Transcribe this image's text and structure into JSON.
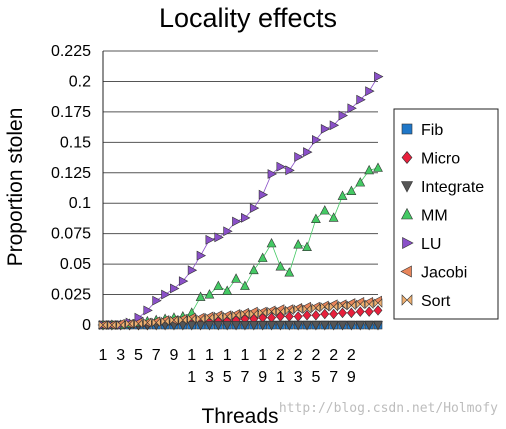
{
  "chart_data": {
    "type": "line",
    "title": "Locality effects",
    "xlabel": "Threads",
    "ylabel": "Proportion stolen",
    "ylim": [
      0,
      0.225
    ],
    "yticks": [
      "0",
      "0.025",
      "0.05",
      "0.075",
      "0.1",
      "0.125",
      "0.15",
      "0.175",
      "0.2",
      "0.225"
    ],
    "x": [
      1,
      2,
      3,
      4,
      5,
      6,
      7,
      8,
      9,
      10,
      11,
      12,
      13,
      14,
      15,
      16,
      17,
      18,
      19,
      20,
      21,
      22,
      23,
      24,
      25,
      26,
      27,
      28,
      29,
      30,
      31,
      32
    ],
    "xtick_labels": [
      {
        "x": 1,
        "lines": [
          "1"
        ]
      },
      {
        "x": 3,
        "lines": [
          "3"
        ]
      },
      {
        "x": 5,
        "lines": [
          "5"
        ]
      },
      {
        "x": 7,
        "lines": [
          "7"
        ]
      },
      {
        "x": 9,
        "lines": [
          "9"
        ]
      },
      {
        "x": 11,
        "lines": [
          "1",
          "1"
        ]
      },
      {
        "x": 13,
        "lines": [
          "1",
          "3"
        ]
      },
      {
        "x": 15,
        "lines": [
          "1",
          "5"
        ]
      },
      {
        "x": 17,
        "lines": [
          "1",
          "7"
        ]
      },
      {
        "x": 19,
        "lines": [
          "1",
          "9"
        ]
      },
      {
        "x": 21,
        "lines": [
          "2",
          "1"
        ]
      },
      {
        "x": 23,
        "lines": [
          "2",
          "3"
        ]
      },
      {
        "x": 25,
        "lines": [
          "2",
          "5"
        ]
      },
      {
        "x": 27,
        "lines": [
          "2",
          "7"
        ]
      },
      {
        "x": 29,
        "lines": [
          "2",
          "9"
        ]
      }
    ],
    "grid": true,
    "legend_position": "right",
    "series": [
      {
        "name": "Fib",
        "marker": "square",
        "color": "#1f77c8",
        "values": [
          0,
          0,
          0,
          0,
          0,
          0,
          0,
          0,
          0,
          0,
          0,
          0,
          0,
          0,
          0,
          0,
          0,
          0,
          0,
          0,
          0,
          0,
          0,
          0,
          0,
          0,
          0,
          0,
          0,
          0,
          0,
          0
        ]
      },
      {
        "name": "Micro",
        "marker": "diamond",
        "color": "#e8203c",
        "values": [
          0,
          0,
          0,
          0,
          0,
          0,
          0.001,
          0.001,
          0.001,
          0.002,
          0.002,
          0.003,
          0.003,
          0.003,
          0.004,
          0.004,
          0.005,
          0.005,
          0.006,
          0.006,
          0.007,
          0.007,
          0.007,
          0.008,
          0.008,
          0.009,
          0.009,
          0.01,
          0.01,
          0.011,
          0.011,
          0.012
        ]
      },
      {
        "name": "Integrate",
        "marker": "triangle-down",
        "color": "#555555",
        "values": [
          0,
          0,
          0,
          0,
          0,
          0,
          0,
          0,
          0,
          0,
          0,
          0,
          0,
          0,
          0,
          0,
          0,
          0,
          0,
          0,
          0,
          0,
          0,
          0,
          0,
          0,
          0,
          0,
          0,
          0,
          0,
          0
        ]
      },
      {
        "name": "MM",
        "marker": "triangle-up",
        "color": "#44c964",
        "values": [
          0,
          0,
          0,
          0.001,
          0.002,
          0.003,
          0.004,
          0.005,
          0.006,
          0.007,
          0.01,
          0.023,
          0.025,
          0.032,
          0.028,
          0.038,
          0.032,
          0.045,
          0.055,
          0.067,
          0.048,
          0.043,
          0.066,
          0.064,
          0.087,
          0.094,
          0.088,
          0.106,
          0.11,
          0.117,
          0.127,
          0.129
        ]
      },
      {
        "name": "LU",
        "marker": "triangle-right",
        "color": "#8a50c8",
        "values": [
          0,
          0,
          0,
          0.002,
          0.006,
          0.012,
          0.02,
          0.025,
          0.03,
          0.036,
          0.045,
          0.057,
          0.07,
          0.072,
          0.077,
          0.085,
          0.088,
          0.096,
          0.107,
          0.124,
          0.13,
          0.127,
          0.138,
          0.142,
          0.152,
          0.161,
          0.164,
          0.172,
          0.178,
          0.185,
          0.192,
          0.204
        ]
      },
      {
        "name": "Jacobi",
        "marker": "triangle-left",
        "color": "#e8855a",
        "values": [
          0,
          0,
          0.001,
          0.001,
          0.002,
          0.002,
          0.003,
          0.004,
          0.004,
          0.005,
          0.006,
          0.006,
          0.007,
          0.008,
          0.008,
          0.009,
          0.01,
          0.011,
          0.011,
          0.012,
          0.013,
          0.013,
          0.014,
          0.015,
          0.015,
          0.016,
          0.017,
          0.017,
          0.018,
          0.019,
          0.019,
          0.02
        ]
      },
      {
        "name": "Sort",
        "marker": "bowtie",
        "color": "#f0b070",
        "values": [
          0,
          0,
          0,
          0.001,
          0.001,
          0.002,
          0.002,
          0.003,
          0.004,
          0.004,
          0.005,
          0.005,
          0.006,
          0.007,
          0.007,
          0.008,
          0.009,
          0.009,
          0.01,
          0.011,
          0.011,
          0.012,
          0.013,
          0.013,
          0.014,
          0.015,
          0.015,
          0.016,
          0.016,
          0.017,
          0.017,
          0.018
        ]
      }
    ]
  },
  "watermark": "http://blog.csdn.net/Holmofy"
}
